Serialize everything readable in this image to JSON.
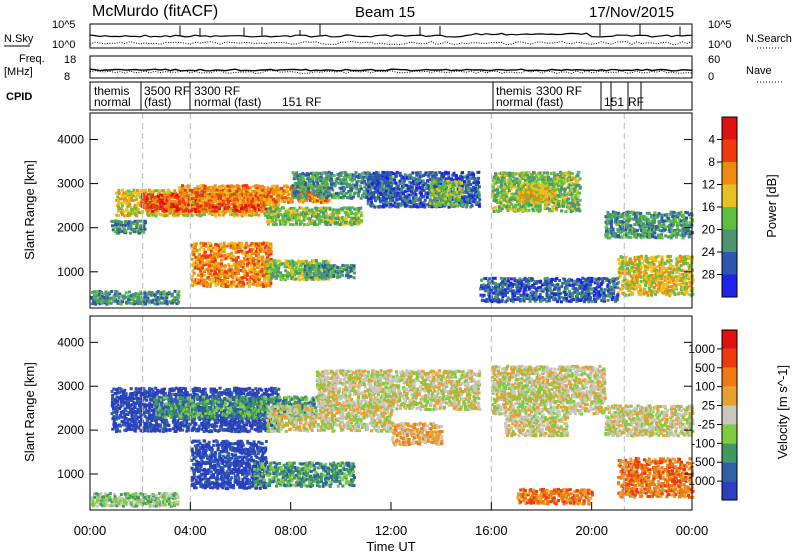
{
  "header": {
    "station": "McMurdo (fitACF)",
    "beam": "Beam 15",
    "date": "17/Nov/2015"
  },
  "noise_panel": {
    "left_label": "N.Sky",
    "right_label": "N.Search",
    "left_ticks": [
      "10^5",
      "10^0"
    ],
    "right_ticks": [
      "10^5",
      "10^0"
    ]
  },
  "freq_panel": {
    "left_label_1": "Freq.",
    "left_label_2": "[MHz]",
    "left_ticks": [
      "18",
      "8"
    ],
    "right_label": "Nave",
    "right_ticks": [
      "60",
      "0"
    ]
  },
  "cpid_panel": {
    "label": "CPID",
    "entries": [
      "themis",
      "normal",
      "3500 RF",
      "(fast)",
      "3300 RF",
      "normal (fast)",
      "151 RF",
      "themis",
      "normal (fast)",
      "3300 RF",
      "151",
      "RF"
    ]
  },
  "colors": {
    "power": [
      "#1f22e8",
      "#2f57b0",
      "#4a9670",
      "#5fc040",
      "#e8c020",
      "#f08a10",
      "#ef3a10",
      "#e01010"
    ],
    "velocity": [
      "#2a3fbf",
      "#2f5fa8",
      "#3f9a60",
      "#7fcc40",
      "#c8c8c0",
      "#e8a030",
      "#ef7a10",
      "#ef3a10",
      "#e01010"
    ]
  },
  "chart_data": [
    {
      "type": "heatmap",
      "title": "",
      "xlabel": "Time UT",
      "ylabel": "Slant Range [km]",
      "x_ticks": [
        "00:00",
        "04:00",
        "08:00",
        "12:00",
        "16:00",
        "20:00",
        "00:00"
      ],
      "y_ticks": [
        "1000",
        "2000",
        "3000",
        "4000"
      ],
      "xlim_hours": [
        0,
        24
      ],
      "ylim_km": [
        180,
        4600
      ],
      "colorbar_label": "Power [dB]",
      "colorbar_ticks": [
        "4",
        "8",
        "12",
        "16",
        "20",
        "24",
        "28"
      ],
      "scatter_regions": [
        {
          "t0": 0.8,
          "t1": 2.2,
          "r0": 1900,
          "r1": 2200,
          "level": 2
        },
        {
          "t0": 1.0,
          "t1": 7.5,
          "r0": 2300,
          "r1": 2900,
          "level": 4
        },
        {
          "t0": 2.0,
          "t1": 7.0,
          "r0": 2400,
          "r1": 2800,
          "level": 6
        },
        {
          "t0": 3.5,
          "t1": 9.5,
          "r0": 2600,
          "r1": 3000,
          "level": 5
        },
        {
          "t0": 7.0,
          "t1": 10.8,
          "r0": 2100,
          "r1": 2500,
          "level": 3
        },
        {
          "t0": 8.0,
          "t1": 12.0,
          "r0": 2700,
          "r1": 3300,
          "level": 2
        },
        {
          "t0": 4.0,
          "t1": 7.2,
          "r0": 700,
          "r1": 1700,
          "level": 5
        },
        {
          "t0": 7.0,
          "t1": 9.5,
          "r0": 850,
          "r1": 1300,
          "level": 3
        },
        {
          "t0": 8.5,
          "t1": 10.5,
          "r0": 900,
          "r1": 1200,
          "level": 2
        },
        {
          "t0": 0.0,
          "t1": 3.5,
          "r0": 300,
          "r1": 600,
          "level": 2
        },
        {
          "t0": 11.0,
          "t1": 15.5,
          "r0": 2500,
          "r1": 3300,
          "level": 1
        },
        {
          "t0": 13.5,
          "t1": 14.8,
          "r0": 2500,
          "r1": 3100,
          "level": 3
        },
        {
          "t0": 16.0,
          "t1": 19.5,
          "r0": 2400,
          "r1": 3300,
          "level": 3
        },
        {
          "t0": 17.0,
          "t1": 18.5,
          "r0": 2600,
          "r1": 3000,
          "level": 4
        },
        {
          "t0": 20.5,
          "t1": 24.0,
          "r0": 1800,
          "r1": 2400,
          "level": 2
        },
        {
          "t0": 21.0,
          "t1": 24.0,
          "r0": 500,
          "r1": 1400,
          "level": 4
        },
        {
          "t0": 15.5,
          "t1": 21.0,
          "r0": 350,
          "r1": 900,
          "level": 1
        }
      ]
    },
    {
      "type": "heatmap",
      "title": "",
      "xlabel": "Time UT",
      "ylabel": "Slant Range [km]",
      "x_ticks": [
        "00:00",
        "04:00",
        "08:00",
        "12:00",
        "16:00",
        "20:00",
        "00:00"
      ],
      "y_ticks": [
        "1000",
        "2000",
        "3000",
        "4000"
      ],
      "xlim_hours": [
        0,
        24
      ],
      "ylim_km": [
        180,
        4600
      ],
      "colorbar_label": "Velocity [m s^-1]",
      "colorbar_ticks": [
        "1000",
        "500",
        "100",
        "25",
        "-25",
        "-100",
        "-500",
        "-1000"
      ],
      "scatter_regions": [
        {
          "t0": 0.8,
          "t1": 7.5,
          "r0": 2000,
          "r1": 3000,
          "level": 0
        },
        {
          "t0": 2.5,
          "t1": 9.0,
          "r0": 2300,
          "r1": 2800,
          "level": 2
        },
        {
          "t0": 7.0,
          "t1": 12.0,
          "r0": 2000,
          "r1": 2600,
          "level": 4
        },
        {
          "t0": 9.0,
          "t1": 15.5,
          "r0": 2500,
          "r1": 3400,
          "level": 4
        },
        {
          "t0": 12.0,
          "t1": 14.0,
          "r0": 1700,
          "r1": 2200,
          "level": 5
        },
        {
          "t0": 4.0,
          "t1": 7.0,
          "r0": 700,
          "r1": 1800,
          "level": 0
        },
        {
          "t0": 6.5,
          "t1": 10.5,
          "r0": 750,
          "r1": 1300,
          "level": 2
        },
        {
          "t0": 0.0,
          "t1": 3.5,
          "r0": 300,
          "r1": 600,
          "level": 3
        },
        {
          "t0": 16.0,
          "t1": 20.5,
          "r0": 2400,
          "r1": 3500,
          "level": 4
        },
        {
          "t0": 16.5,
          "t1": 19.0,
          "r0": 1900,
          "r1": 2400,
          "level": 4
        },
        {
          "t0": 20.5,
          "t1": 24.0,
          "r0": 1900,
          "r1": 2600,
          "level": 4
        },
        {
          "t0": 21.0,
          "t1": 24.0,
          "r0": 500,
          "r1": 1400,
          "level": 6
        },
        {
          "t0": 17.0,
          "t1": 20.0,
          "r0": 350,
          "r1": 700,
          "level": 6
        }
      ]
    }
  ],
  "time_axis": {
    "label": "Time UT",
    "ticks": [
      "00:00",
      "04:00",
      "08:00",
      "12:00",
      "16:00",
      "20:00",
      "00:00"
    ]
  }
}
